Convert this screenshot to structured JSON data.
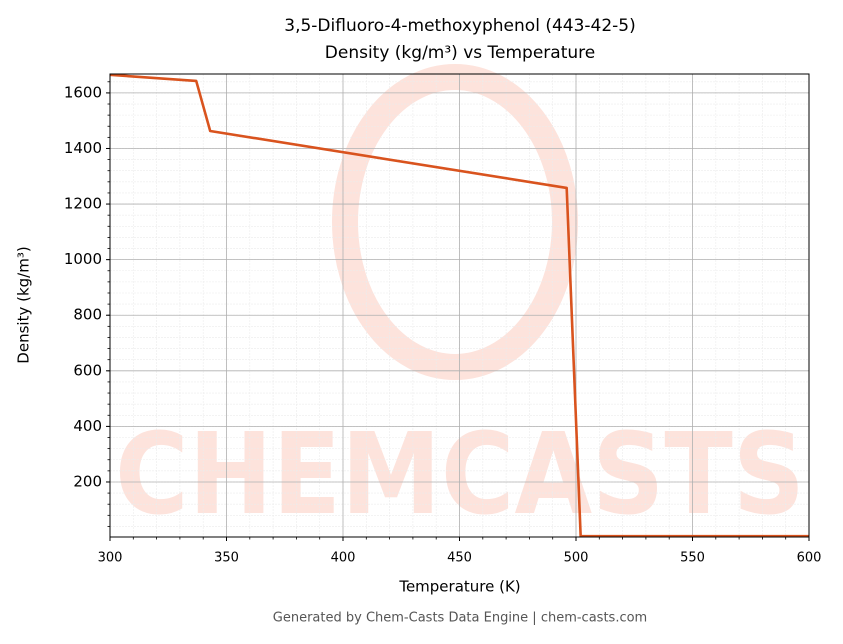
{
  "chart_data": {
    "type": "line",
    "title": "3,5-Difluoro-4-methoxyphenol (443-42-5)",
    "subtitle": "Density (kg/m³) vs Temperature",
    "x_label": "Temperature (K)",
    "y_label": "Density (kg/m³)",
    "footer": "Generated by Chem-Casts Data Engine | chem-casts.com",
    "watermark": "CHEMCASTS",
    "x": [
      300,
      337,
      343,
      496,
      502,
      600
    ],
    "series": [
      {
        "name": "Density",
        "color": "#d9531e",
        "values": [
          1665,
          1643,
          1463,
          1258,
          5,
          5
        ]
      }
    ],
    "xlim": [
      300,
      600
    ],
    "xticks": [
      300,
      350,
      400,
      450,
      500,
      550,
      600
    ],
    "ylim": [
      2,
      1668
    ],
    "yticks": [
      200,
      400,
      600,
      800,
      1000,
      1200,
      1400,
      1600
    ],
    "grid": true,
    "minor_grid": true
  }
}
